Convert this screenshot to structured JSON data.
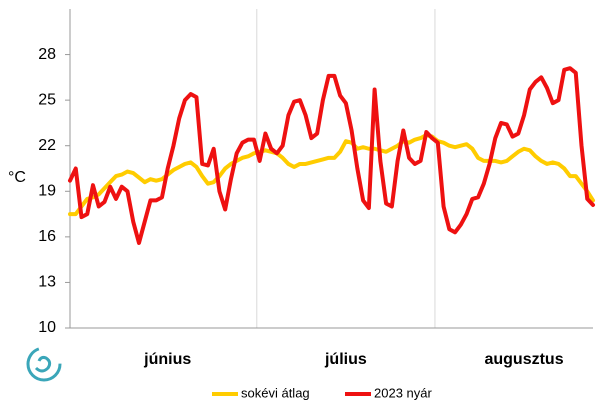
{
  "chart_data": {
    "type": "line",
    "ylabel": "°C",
    "ylim": [
      10,
      31
    ],
    "yticks": [
      10,
      13,
      16,
      19,
      22,
      25,
      28
    ],
    "categories": [
      null,
      null,
      null,
      null,
      null,
      null,
      null,
      null,
      null,
      null,
      null,
      null,
      null,
      null,
      null,
      null,
      null,
      "június",
      null,
      null,
      null,
      null,
      null,
      null,
      null,
      null,
      null,
      null,
      null,
      null,
      null,
      null,
      null,
      null,
      null,
      null,
      null,
      null,
      null,
      null,
      null,
      null,
      null,
      null,
      null,
      null,
      null,
      null,
      "július",
      null,
      null,
      null,
      null,
      null,
      null,
      null,
      null,
      null,
      null,
      null,
      null,
      null,
      null,
      null,
      null,
      null,
      null,
      null,
      null,
      null,
      null,
      null,
      null,
      null,
      null,
      null,
      null,
      null,
      null,
      "augusztus",
      null,
      null,
      null,
      null,
      null,
      null,
      null,
      null,
      null,
      null,
      null,
      null
    ],
    "series": [
      {
        "name": "sokévi átlag",
        "color": "#ffcc00",
        "values": [
          17.5,
          17.5,
          18.0,
          18.5,
          18.6,
          18.8,
          19.2,
          19.6,
          20.0,
          20.1,
          20.3,
          20.2,
          19.9,
          19.6,
          19.8,
          19.7,
          19.8,
          20.1,
          20.4,
          20.6,
          20.8,
          20.9,
          20.6,
          20.0,
          19.5,
          19.6,
          20.0,
          20.5,
          20.8,
          21.0,
          21.2,
          21.3,
          21.5,
          21.6,
          21.7,
          21.6,
          21.5,
          21.2,
          20.8,
          20.6,
          20.8,
          20.8,
          20.9,
          21.0,
          21.1,
          21.2,
          21.2,
          21.6,
          22.3,
          22.2,
          21.8,
          21.9,
          21.8,
          21.8,
          21.7,
          21.6,
          21.8,
          22.0,
          22.3,
          22.2,
          22.4,
          22.5,
          22.7,
          22.6,
          22.3,
          22.2,
          22.0,
          21.9,
          22.0,
          22.1,
          21.8,
          21.2,
          21.0,
          21.0,
          21.0,
          20.9,
          21.0,
          21.3,
          21.6,
          21.8,
          21.7,
          21.3,
          21.0,
          20.8,
          20.9,
          20.8,
          20.5,
          20.0,
          20.0,
          19.5,
          19.0,
          18.4
        ]
      },
      {
        "name": "2023 nyár",
        "color": "#ee1111",
        "values": [
          19.7,
          20.5,
          17.3,
          17.5,
          19.4,
          18.0,
          18.3,
          19.3,
          18.5,
          19.3,
          19.0,
          17.0,
          15.6,
          17.0,
          18.4,
          18.4,
          18.6,
          20.5,
          22.0,
          23.8,
          25.0,
          25.4,
          25.2,
          20.8,
          20.7,
          21.8,
          19.0,
          17.8,
          19.8,
          21.5,
          22.2,
          22.4,
          22.4,
          21.0,
          22.8,
          21.8,
          21.5,
          22.0,
          24.0,
          24.9,
          25.0,
          24.0,
          22.5,
          22.8,
          25.0,
          26.6,
          26.6,
          25.3,
          24.8,
          23.0,
          20.5,
          18.4,
          17.9,
          25.7,
          21.0,
          18.2,
          18.0,
          21.0,
          23.0,
          21.2,
          20.8,
          21.0,
          22.9,
          22.5,
          22.2,
          18.0,
          16.5,
          16.3,
          16.8,
          17.5,
          18.5,
          18.6,
          19.5,
          20.8,
          22.5,
          23.5,
          23.4,
          22.6,
          22.8,
          24.0,
          25.7,
          26.2,
          26.5,
          25.8,
          24.8,
          25.0,
          27.0,
          27.1,
          26.8,
          22.0,
          18.5,
          18.1
        ]
      }
    ]
  }
}
